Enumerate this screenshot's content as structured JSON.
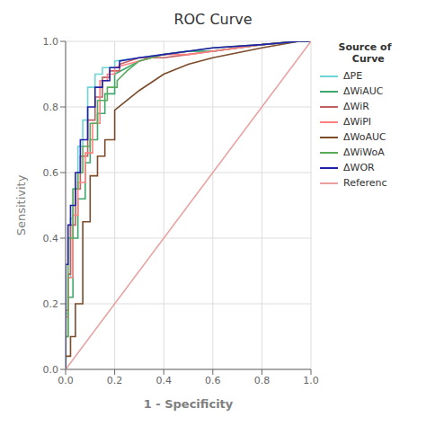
{
  "chart_data": {
    "type": "line",
    "title": "ROC Curve",
    "xlabel": "1 - Specificity",
    "ylabel": "Sensitivity",
    "legend_title": "Source of\n  Curve",
    "grid": true,
    "legend": "right",
    "xlim": [
      0.0,
      1.0
    ],
    "ylim": [
      0.0,
      1.0
    ],
    "xticks": [
      {
        "value": 0.0,
        "label": "0.0"
      },
      0.2,
      0.4,
      0.6,
      0.8,
      {
        "value": 1.0,
        "label": "1.0"
      }
    ],
    "yticks": [
      {
        "value": 0.0,
        "label": "0.0"
      },
      0.2,
      0.4,
      0.6,
      0.8,
      {
        "value": 1.0,
        "label": "1.0"
      }
    ],
    "series": [
      {
        "name": "ΔPE",
        "color": "#6DD5D5",
        "x": [
          0.0,
          0.0,
          0.01,
          0.01,
          0.02,
          0.02,
          0.03,
          0.03,
          0.05,
          0.05,
          0.07,
          0.07,
          0.09,
          0.09,
          0.12,
          0.12,
          0.15,
          0.15,
          0.2,
          0.2,
          0.3,
          0.4,
          0.5,
          0.6,
          0.8,
          0.95,
          1.0
        ],
        "values": [
          0.0,
          0.17,
          0.17,
          0.28,
          0.28,
          0.46,
          0.46,
          0.55,
          0.55,
          0.68,
          0.68,
          0.76,
          0.76,
          0.86,
          0.86,
          0.9,
          0.9,
          0.92,
          0.92,
          0.94,
          0.95,
          0.96,
          0.97,
          0.97,
          0.99,
          1.0,
          1.0
        ]
      },
      {
        "name": "ΔWiAUC",
        "color": "#3DAA6D",
        "x": [
          0.0,
          0.0,
          0.01,
          0.01,
          0.03,
          0.03,
          0.05,
          0.05,
          0.08,
          0.08,
          0.1,
          0.1,
          0.13,
          0.13,
          0.16,
          0.16,
          0.2,
          0.2,
          0.25,
          0.3,
          0.4,
          0.5,
          0.6,
          0.8,
          0.95,
          1.0
        ],
        "values": [
          0.0,
          0.1,
          0.1,
          0.22,
          0.22,
          0.4,
          0.4,
          0.52,
          0.52,
          0.63,
          0.63,
          0.7,
          0.7,
          0.78,
          0.78,
          0.84,
          0.84,
          0.9,
          0.92,
          0.94,
          0.96,
          0.97,
          0.97,
          0.99,
          1.0,
          1.0
        ]
      },
      {
        "name": "ΔWiR",
        "color": "#C06060",
        "x": [
          0.0,
          0.0,
          0.01,
          0.01,
          0.02,
          0.02,
          0.04,
          0.04,
          0.06,
          0.06,
          0.09,
          0.09,
          0.12,
          0.12,
          0.15,
          0.15,
          0.18,
          0.18,
          0.22,
          0.22,
          0.3,
          0.4,
          0.5,
          0.6,
          0.8,
          0.95,
          1.0
        ],
        "values": [
          0.0,
          0.18,
          0.18,
          0.29,
          0.29,
          0.44,
          0.44,
          0.55,
          0.55,
          0.65,
          0.65,
          0.76,
          0.76,
          0.83,
          0.83,
          0.89,
          0.89,
          0.91,
          0.91,
          0.93,
          0.95,
          0.95,
          0.96,
          0.97,
          0.99,
          1.0,
          1.0
        ]
      },
      {
        "name": "ΔWiPI",
        "color": "#FF8080",
        "x": [
          0.0,
          0.0,
          0.01,
          0.01,
          0.03,
          0.03,
          0.05,
          0.05,
          0.08,
          0.08,
          0.11,
          0.11,
          0.14,
          0.14,
          0.17,
          0.17,
          0.2,
          0.2,
          0.25,
          0.3,
          0.4,
          0.5,
          0.6,
          0.8,
          0.95,
          1.0
        ],
        "values": [
          0.0,
          0.16,
          0.16,
          0.28,
          0.28,
          0.47,
          0.47,
          0.57,
          0.57,
          0.66,
          0.66,
          0.75,
          0.75,
          0.88,
          0.88,
          0.9,
          0.9,
          0.92,
          0.93,
          0.94,
          0.96,
          0.96,
          0.97,
          0.99,
          1.0,
          1.0
        ]
      },
      {
        "name": "ΔWoAUC",
        "color": "#7B4B2A",
        "x": [
          0.0,
          0.0,
          0.02,
          0.02,
          0.04,
          0.04,
          0.07,
          0.07,
          0.1,
          0.1,
          0.13,
          0.13,
          0.16,
          0.16,
          0.2,
          0.2,
          0.25,
          0.3,
          0.4,
          0.5,
          0.6,
          0.8,
          0.95,
          1.0
        ],
        "values": [
          0.0,
          0.04,
          0.04,
          0.1,
          0.1,
          0.2,
          0.2,
          0.45,
          0.45,
          0.59,
          0.59,
          0.65,
          0.65,
          0.7,
          0.7,
          0.79,
          0.82,
          0.85,
          0.9,
          0.93,
          0.95,
          0.98,
          1.0,
          1.0
        ]
      },
      {
        "name": "ΔWiWoA",
        "color": "#5AAA5A",
        "x": [
          0.0,
          0.0,
          0.01,
          0.01,
          0.03,
          0.03,
          0.05,
          0.05,
          0.07,
          0.07,
          0.1,
          0.1,
          0.13,
          0.13,
          0.17,
          0.17,
          0.21,
          0.21,
          0.25,
          0.3,
          0.4,
          0.5,
          0.6,
          0.8,
          0.95,
          1.0
        ],
        "values": [
          0.0,
          0.1,
          0.1,
          0.4,
          0.4,
          0.55,
          0.55,
          0.6,
          0.6,
          0.68,
          0.68,
          0.75,
          0.75,
          0.82,
          0.82,
          0.86,
          0.86,
          0.88,
          0.91,
          0.94,
          0.96,
          0.97,
          0.98,
          0.99,
          1.0,
          1.0
        ]
      },
      {
        "name": "ΔWOR",
        "color": "#2020AA",
        "x": [
          0.0,
          0.0,
          0.01,
          0.01,
          0.02,
          0.02,
          0.04,
          0.04,
          0.06,
          0.06,
          0.09,
          0.09,
          0.12,
          0.12,
          0.15,
          0.15,
          0.18,
          0.18,
          0.22,
          0.22,
          0.3,
          0.4,
          0.5,
          0.6,
          0.8,
          0.95,
          1.0
        ],
        "values": [
          0.0,
          0.32,
          0.32,
          0.44,
          0.44,
          0.5,
          0.5,
          0.6,
          0.6,
          0.7,
          0.7,
          0.8,
          0.8,
          0.86,
          0.86,
          0.88,
          0.88,
          0.92,
          0.92,
          0.94,
          0.95,
          0.96,
          0.97,
          0.98,
          0.99,
          1.0,
          1.0
        ]
      },
      {
        "name": "Referenc",
        "color": "#E8A0A0",
        "x": [
          0.0,
          1.0
        ],
        "values": [
          0.0,
          1.0
        ]
      }
    ]
  }
}
